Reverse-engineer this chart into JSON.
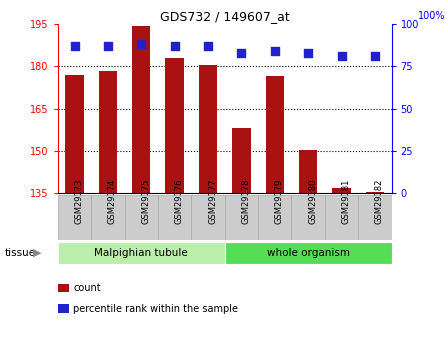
{
  "title": "GDS732 / 149607_at",
  "samples": [
    "GSM29173",
    "GSM29174",
    "GSM29175",
    "GSM29176",
    "GSM29177",
    "GSM29178",
    "GSM29179",
    "GSM29180",
    "GSM29181",
    "GSM29182"
  ],
  "counts": [
    177,
    178.5,
    194.5,
    183,
    180.5,
    158,
    176.5,
    150.5,
    137,
    135.5
  ],
  "percentile_ranks": [
    87,
    87,
    88,
    87,
    87,
    83,
    84,
    83,
    81,
    81
  ],
  "ylim_left": [
    135,
    195
  ],
  "ylim_right": [
    0,
    100
  ],
  "yticks_left": [
    135,
    150,
    165,
    180,
    195
  ],
  "yticks_right": [
    0,
    25,
    50,
    75,
    100
  ],
  "grid_yticks": [
    150,
    165,
    180
  ],
  "bar_color": "#aa1111",
  "dot_color": "#2222cc",
  "grid_color": "#000000",
  "tissue_groups": [
    {
      "label": "Malpighian tubule",
      "start": 0,
      "end": 5,
      "color": "#bbeeaa"
    },
    {
      "label": "whole organism",
      "start": 5,
      "end": 10,
      "color": "#55dd55"
    }
  ],
  "tissue_label": "tissue",
  "legend_items": [
    {
      "color": "#aa1111",
      "label": "count"
    },
    {
      "color": "#2222cc",
      "label": "percentile rank within the sample"
    }
  ],
  "bar_width": 0.55,
  "dot_size": 30,
  "background_color": "#ffffff",
  "plot_bg_color": "#ffffff",
  "tickbox_color": "#cccccc",
  "tickbox_edge_color": "#aaaaaa"
}
